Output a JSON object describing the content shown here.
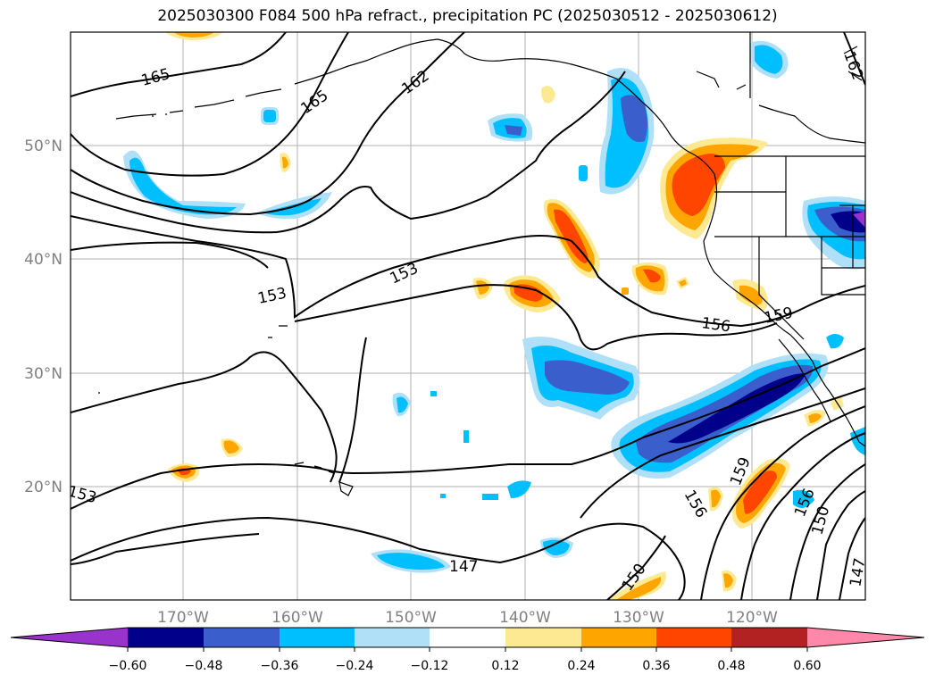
{
  "title": "2025030300 F084 500 hPa refract., precipitation PC (2025030512 - 2025030612)",
  "lat_labels": [
    "50°N",
    "40°N",
    "30°N",
    "20°N"
  ],
  "lon_labels": [
    "170°W",
    "160°W",
    "150°W",
    "140°W",
    "130°W",
    "120°W"
  ],
  "contour_labels": [
    "165",
    "165",
    "162",
    "162",
    "153",
    "153",
    "153",
    "156",
    "159",
    "159",
    "156",
    "156",
    "150",
    "150",
    "147",
    "147"
  ],
  "colorbar": {
    "ticks": [
      "−0.60",
      "−0.48",
      "−0.36",
      "−0.24",
      "−0.12",
      "0.12",
      "0.24",
      "0.36",
      "0.48",
      "0.60"
    ],
    "colors": [
      "#9933cc",
      "#00008b",
      "#3a5fcd",
      "#00bfff",
      "#b0e0f8",
      "#ffffff",
      "#fde992",
      "#ffa500",
      "#ff4500",
      "#b22222",
      "#ff88aa"
    ]
  }
}
